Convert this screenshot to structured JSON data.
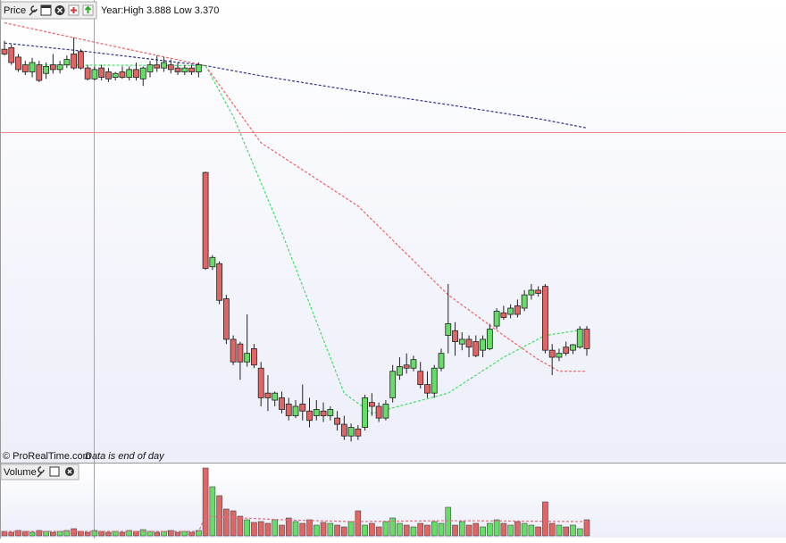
{
  "chart_data": [
    {
      "type": "candlestick",
      "title": "Price",
      "subtitle": "Year:High 3.888 Low 3.370",
      "annotations": [
        "© ProRealTime.com",
        "Data is end of day"
      ],
      "up_color": "#66dd66",
      "down_color": "#e06666",
      "ylim": [
        3.344,
        3.911
      ],
      "open": [
        3.873,
        3.875,
        3.863,
        3.853,
        3.844,
        3.853,
        3.842,
        3.853,
        3.847,
        3.853,
        3.867,
        3.87,
        3.849,
        3.835,
        3.849,
        3.844,
        3.837,
        3.844,
        3.837,
        3.847,
        3.835,
        3.844,
        3.853,
        3.849,
        3.853,
        3.849,
        3.844,
        3.849,
        3.844,
        3.715,
        3.594,
        3.598,
        3.553,
        3.501,
        3.495,
        3.472,
        3.489,
        3.464,
        3.432,
        3.423,
        3.426,
        3.418,
        3.403,
        3.418,
        3.409,
        3.403,
        3.409,
        3.403,
        3.4,
        3.392,
        3.377,
        3.386,
        3.388,
        3.42,
        3.415,
        3.4,
        3.426,
        3.455,
        3.468,
        3.464,
        3.46,
        3.443,
        3.432,
        3.464,
        3.506,
        3.512,
        3.495,
        3.501,
        3.498,
        3.487,
        3.489,
        3.518,
        3.535,
        3.533,
        3.544,
        3.541,
        3.558,
        3.564,
        3.569,
        3.487,
        3.478,
        3.491,
        3.487,
        3.491,
        3.514
      ],
      "high": [
        3.884,
        3.879,
        3.867,
        3.858,
        3.862,
        3.858,
        3.856,
        3.867,
        3.858,
        3.865,
        3.888,
        3.873,
        3.853,
        3.851,
        3.853,
        3.849,
        3.844,
        3.851,
        3.851,
        3.856,
        3.851,
        3.858,
        3.865,
        3.863,
        3.86,
        3.856,
        3.853,
        3.853,
        3.856,
        3.716,
        3.609,
        3.601,
        3.558,
        3.506,
        3.498,
        3.533,
        3.495,
        3.472,
        3.455,
        3.434,
        3.434,
        3.426,
        3.423,
        3.443,
        3.426,
        3.423,
        3.42,
        3.415,
        3.409,
        3.403,
        3.393,
        3.391,
        3.43,
        3.432,
        3.42,
        3.423,
        3.468,
        3.478,
        3.483,
        3.48,
        3.472,
        3.46,
        3.468,
        3.489,
        3.572,
        3.523,
        3.51,
        3.506,
        3.506,
        3.506,
        3.521,
        3.541,
        3.544,
        3.546,
        3.552,
        3.564,
        3.572,
        3.569,
        3.572,
        3.495,
        3.489,
        3.498,
        3.495,
        3.518,
        3.518
      ],
      "low": [
        3.865,
        3.853,
        3.844,
        3.84,
        3.837,
        3.831,
        3.835,
        3.842,
        3.842,
        3.849,
        3.847,
        3.847,
        3.833,
        3.833,
        3.833,
        3.831,
        3.833,
        3.835,
        3.833,
        3.833,
        3.826,
        3.837,
        3.844,
        3.844,
        3.842,
        3.84,
        3.84,
        3.84,
        3.837,
        3.59,
        3.59,
        3.546,
        3.495,
        3.468,
        3.449,
        3.466,
        3.464,
        3.415,
        3.409,
        3.415,
        3.406,
        3.397,
        3.4,
        3.397,
        3.388,
        3.397,
        3.395,
        3.397,
        3.384,
        3.372,
        3.37,
        3.372,
        3.384,
        3.403,
        3.395,
        3.397,
        3.42,
        3.449,
        3.457,
        3.46,
        3.438,
        3.426,
        3.426,
        3.46,
        3.483,
        3.48,
        3.487,
        3.478,
        3.478,
        3.478,
        3.487,
        3.514,
        3.526,
        3.528,
        3.529,
        3.537,
        3.552,
        3.556,
        3.483,
        3.455,
        3.473,
        3.48,
        3.482,
        3.489,
        3.48
      ],
      "close": [
        3.867,
        3.856,
        3.847,
        3.844,
        3.856,
        3.833,
        3.851,
        3.847,
        3.853,
        3.86,
        3.849,
        3.849,
        3.835,
        3.847,
        3.837,
        3.835,
        3.842,
        3.837,
        3.847,
        3.837,
        3.849,
        3.853,
        3.849,
        3.856,
        3.847,
        3.844,
        3.849,
        3.844,
        3.853,
        3.592,
        3.606,
        3.551,
        3.501,
        3.472,
        3.472,
        3.483,
        3.468,
        3.426,
        3.426,
        3.432,
        3.411,
        3.403,
        3.415,
        3.409,
        3.397,
        3.411,
        3.403,
        3.411,
        3.392,
        3.377,
        3.388,
        3.377,
        3.426,
        3.415,
        3.4,
        3.418,
        3.46,
        3.466,
        3.464,
        3.475,
        3.443,
        3.432,
        3.464,
        3.483,
        3.521,
        3.498,
        3.501,
        3.491,
        3.48,
        3.501,
        3.514,
        3.537,
        3.529,
        3.541,
        3.533,
        3.558,
        3.564,
        3.56,
        3.487,
        3.478,
        3.483,
        3.483,
        3.494,
        3.514,
        3.489
      ],
      "lines": [
        {
          "color": "#33338f",
          "x": [
            0,
            12,
            29,
            37,
            51,
            64,
            77,
            84
          ],
          "values": [
            3.881,
            3.87,
            3.852,
            3.839,
            3.819,
            3.802,
            3.784,
            3.772
          ]
        },
        {
          "color": "#f06060",
          "x": [
            0,
            12,
            29,
            37,
            51,
            64,
            72,
            77,
            80,
            84
          ],
          "values": [
            3.907,
            3.884,
            3.852,
            3.753,
            3.672,
            3.558,
            3.506,
            3.475,
            3.46,
            3.46
          ]
        },
        {
          "color": "#44dd66",
          "x": [
            2,
            29,
            33,
            40,
            49,
            53,
            64,
            72,
            78,
            84
          ],
          "values": [
            3.853,
            3.852,
            3.787,
            3.638,
            3.432,
            3.406,
            3.432,
            3.478,
            3.506,
            3.514
          ]
        }
      ]
    },
    {
      "type": "volume",
      "title": "Volume",
      "ylim": [
        0,
        80
      ],
      "values": [
        5,
        4,
        6,
        5,
        4,
        6,
        5,
        4,
        5,
        6,
        8,
        5,
        4,
        6,
        5,
        4,
        5,
        4,
        6,
        5,
        7,
        5,
        4,
        5,
        6,
        4,
        5,
        4,
        6,
        76,
        55,
        45,
        30,
        28,
        22,
        18,
        15,
        16,
        14,
        18,
        12,
        20,
        16,
        14,
        18,
        12,
        15,
        14,
        12,
        10,
        16,
        28,
        12,
        14,
        10,
        16,
        20,
        14,
        12,
        10,
        14,
        12,
        16,
        14,
        32,
        12,
        16,
        12,
        14,
        10,
        14,
        18,
        14,
        12,
        16,
        14,
        12,
        10,
        38,
        14,
        12,
        10,
        12,
        8,
        18
      ],
      "lines": [
        {
          "color": "#e07080",
          "x": [
            0,
            28,
            29,
            40,
            50,
            64,
            84
          ],
          "values": [
            5,
            5,
            22,
            18,
            16,
            17,
            16
          ]
        }
      ]
    }
  ]
}
